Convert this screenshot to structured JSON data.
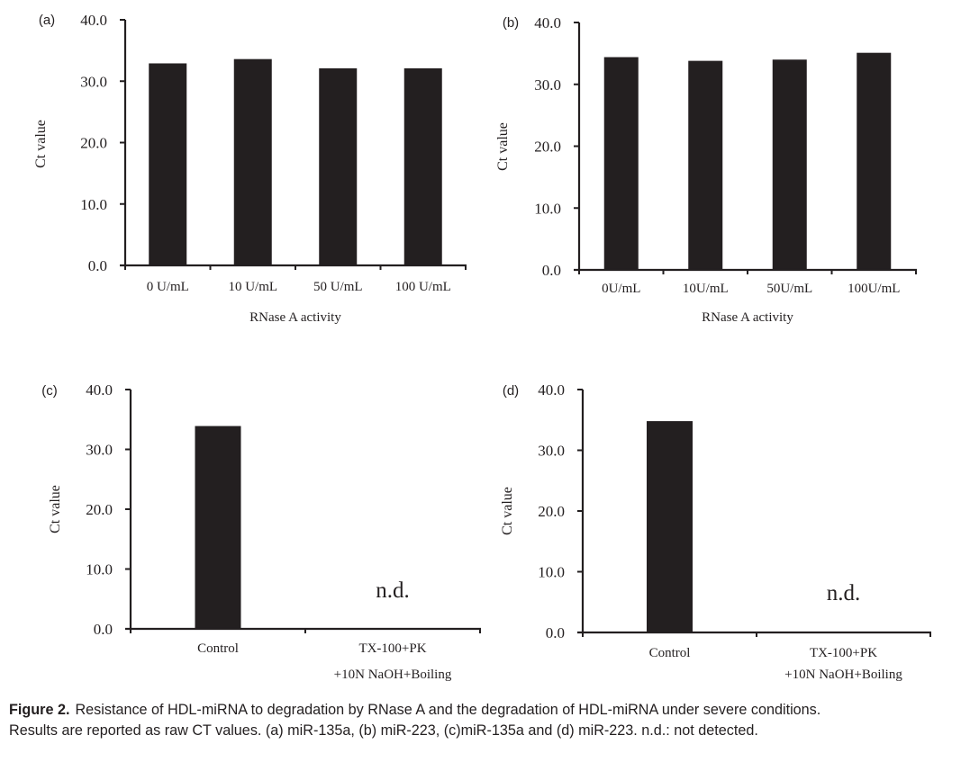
{
  "colors": {
    "bar": "#231f20",
    "axis": "#231f20",
    "text": "#231f20"
  },
  "chart_data": [
    {
      "panel": "(a)",
      "type": "bar",
      "title": "",
      "xlabel": "RNase A activity",
      "ylabel": "Ct value",
      "ylim": [
        0,
        40
      ],
      "yticks": [
        "0.0",
        "10.0",
        "20.0",
        "30.0",
        "40.0"
      ],
      "ytick_values": [
        0,
        10,
        20,
        30,
        40
      ],
      "grid": false,
      "categories": [
        "0 U/mL",
        "10 U/mL",
        "50 U/mL",
        "100 U/mL"
      ],
      "values": [
        32.9,
        33.6,
        32.1,
        32.1
      ],
      "annotations": []
    },
    {
      "panel": "(b)",
      "type": "bar",
      "title": "",
      "xlabel": "RNase A activity",
      "ylabel": "Ct value",
      "ylim": [
        0,
        40
      ],
      "yticks": [
        "0.0",
        "10.0",
        "20.0",
        "30.0",
        "40.0"
      ],
      "ytick_values": [
        0,
        10,
        20,
        30,
        40
      ],
      "grid": false,
      "categories": [
        "0U/mL",
        "10U/mL",
        "50U/mL",
        "100U/mL"
      ],
      "values": [
        34.4,
        33.8,
        34.0,
        35.1
      ],
      "annotations": []
    },
    {
      "panel": "(c)",
      "type": "bar",
      "title": "",
      "xlabel": "",
      "ylabel": "Ct value",
      "ylim": [
        0,
        40
      ],
      "yticks": [
        "0.0",
        "10.0",
        "20.0",
        "30.0",
        "40.0"
      ],
      "ytick_values": [
        0,
        10,
        20,
        30,
        40
      ],
      "grid": false,
      "categories": [
        "Control",
        "TX-100+PK\n+10N NaOH+Boiling"
      ],
      "category_lines": [
        [
          "Control"
        ],
        [
          "TX-100+PK",
          "+10N NaOH+Boiling"
        ]
      ],
      "values": [
        33.9,
        null
      ],
      "annotations": [
        {
          "category_index": 1,
          "text": "n.d."
        }
      ]
    },
    {
      "panel": "(d)",
      "type": "bar",
      "title": "",
      "xlabel": "",
      "ylabel": "Ct value",
      "ylim": [
        0,
        40
      ],
      "yticks": [
        "0.0",
        "10.0",
        "20.0",
        "30.0",
        "40.0"
      ],
      "ytick_values": [
        0,
        10,
        20,
        30,
        40
      ],
      "grid": false,
      "categories": [
        "Control",
        "TX-100+PK\n+10N NaOH+Boiling"
      ],
      "category_lines": [
        [
          "Control"
        ],
        [
          "TX-100+PK",
          "+10N NaOH+Boiling"
        ]
      ],
      "values": [
        34.8,
        null
      ],
      "annotations": [
        {
          "category_index": 1,
          "text": "n.d."
        }
      ]
    }
  ],
  "caption": {
    "label": "Figure 2.",
    "line1": "Resistance of HDL-miRNA to degradation by RNase A and the degradation of HDL-miRNA under severe conditions.",
    "line2": "Results are reported as raw CT values. (a) miR-135a, (b) miR-223, (c)miR-135a and (d) miR-223. n.d.: not detected."
  }
}
